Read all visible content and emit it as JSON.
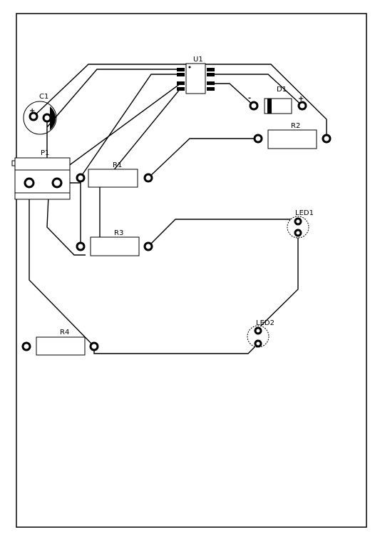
{
  "board": {
    "components": [
      {
        "id": "u1",
        "designator": "U1"
      },
      {
        "id": "c1",
        "designator": "C1",
        "polarity_mark": "+"
      },
      {
        "id": "d1",
        "designator": "D1",
        "polarity_mark": "+",
        "cathode_mark": "-"
      },
      {
        "id": "r2",
        "designator": "R2"
      },
      {
        "id": "p1",
        "designator": "P1"
      },
      {
        "id": "r1",
        "designator": "R1"
      },
      {
        "id": "r3",
        "designator": "R3"
      },
      {
        "id": "led1",
        "designator": "LED1"
      },
      {
        "id": "led2",
        "designator": "LED2"
      },
      {
        "id": "r4",
        "designator": "R4"
      }
    ]
  }
}
